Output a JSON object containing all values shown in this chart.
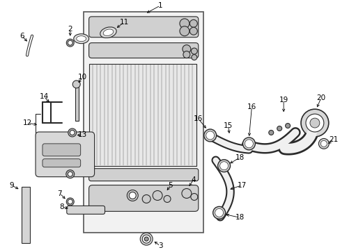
{
  "bg_color": "#ffffff",
  "fig_width": 4.89,
  "fig_height": 3.6,
  "dpi": 100,
  "line_color": "#2a2a2a",
  "fill_light": "#e8e8e8",
  "fill_mid": "#c8c8c8",
  "fill_dark": "#aaaaaa"
}
